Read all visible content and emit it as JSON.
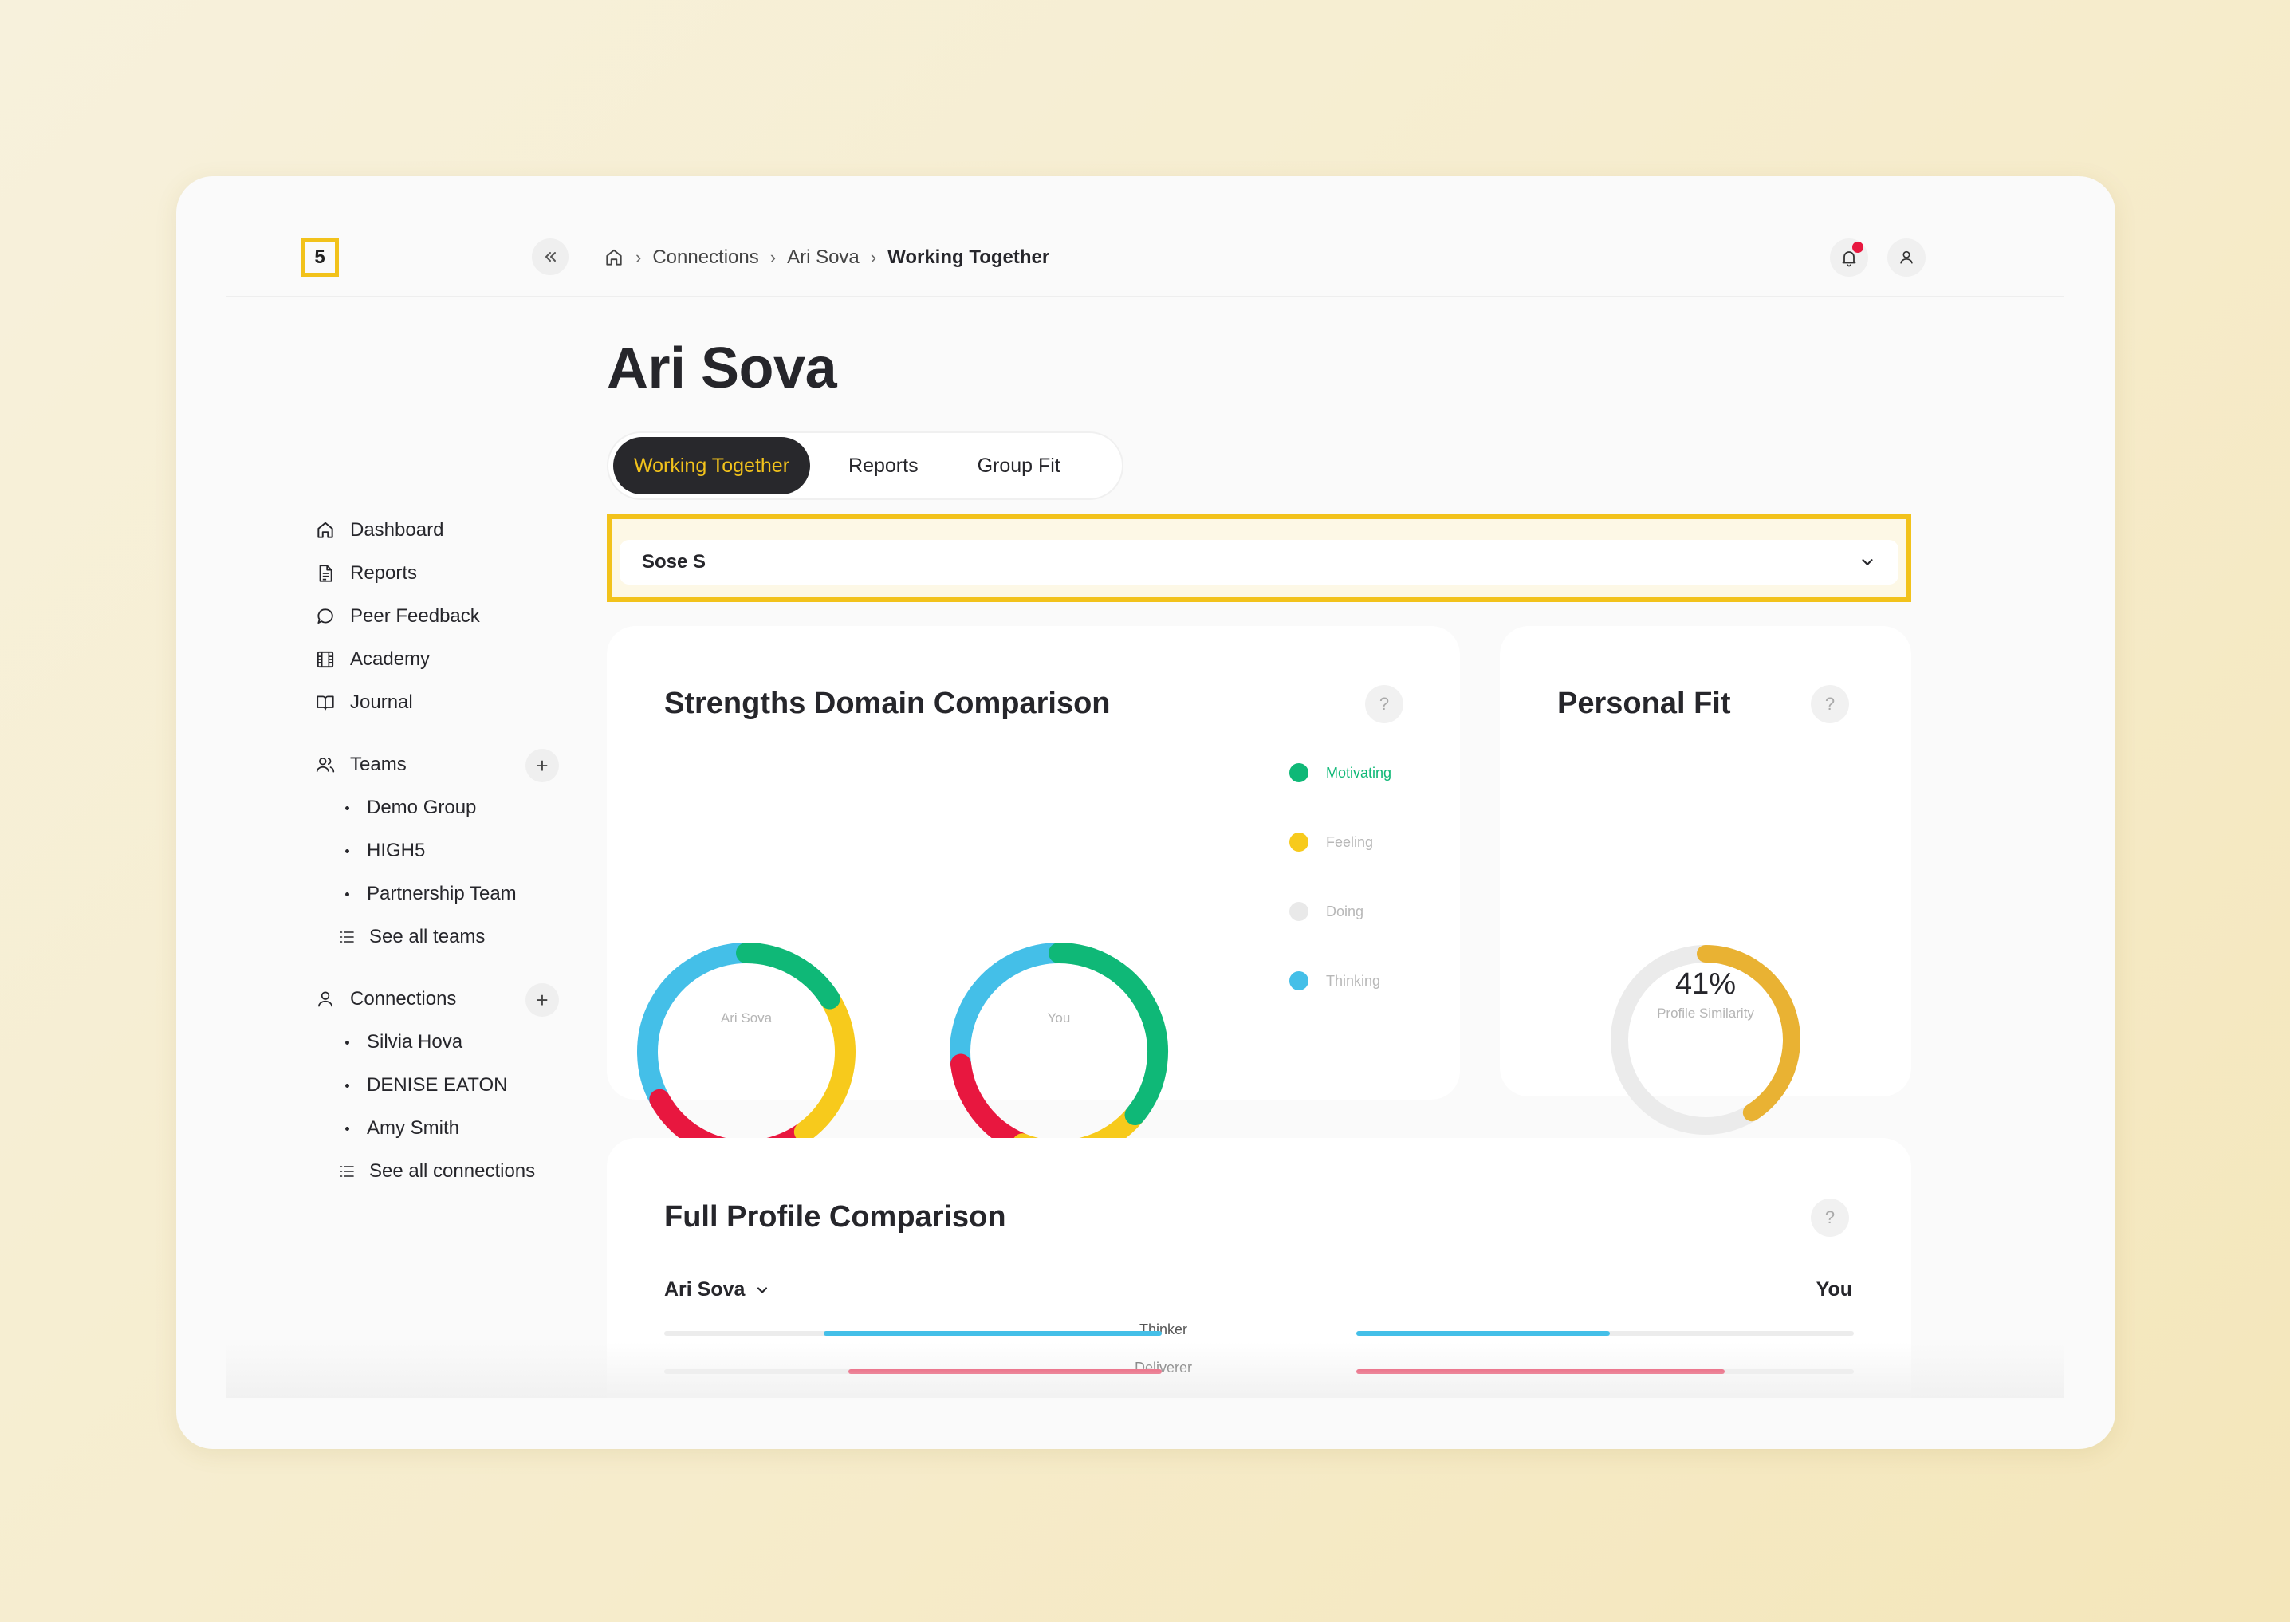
{
  "app": {
    "logo_text": "5"
  },
  "breadcrumb": {
    "items": [
      "Connections",
      "Ari Sova"
    ],
    "current": "Working Together"
  },
  "sidebar": {
    "nav": [
      "Dashboard",
      "Reports",
      "Peer Feedback",
      "Academy",
      "Journal"
    ],
    "teams": {
      "label": "Teams",
      "items": [
        "Demo Group",
        "HIGH5",
        "Partnership Team"
      ],
      "see_all": "See all teams"
    },
    "connections": {
      "label": "Connections",
      "items": [
        "Silvia Hova",
        "DENISE EATON",
        "Amy Smith"
      ],
      "see_all": "See all connections"
    }
  },
  "page": {
    "title": "Ari Sova"
  },
  "tabs": [
    {
      "label": "Working Together",
      "active": true
    },
    {
      "label": "Reports",
      "active": false
    },
    {
      "label": "Group Fit",
      "active": false
    }
  ],
  "select": {
    "value": "Sose S"
  },
  "strengths": {
    "title": "Strengths Domain Comparison",
    "help": "?",
    "legend": [
      {
        "label": "Motivating",
        "color": "#0fb877"
      },
      {
        "label": "Feeling",
        "color": "#f7ca1c"
      },
      {
        "label": "Doing",
        "color": "#e9e9e9"
      },
      {
        "label": "Thinking",
        "color": "#44bfe8"
      }
    ],
    "donuts": [
      {
        "caption": "Ari Sova",
        "segments": [
          {
            "domain": "Motivating",
            "color": "#0fb877",
            "fraction": 0.16
          },
          {
            "domain": "Feeling",
            "color": "#f7ca1c",
            "fraction": 0.24
          },
          {
            "domain": "Doing",
            "color": "#e8173f",
            "fraction": 0.27
          },
          {
            "domain": "Thinking",
            "color": "#44bfe8",
            "fraction": 0.33
          }
        ]
      },
      {
        "caption": "You",
        "segments": [
          {
            "domain": "Motivating",
            "color": "#0fb877",
            "fraction": 0.36
          },
          {
            "domain": "Feeling",
            "color": "#f7ca1c",
            "fraction": 0.2
          },
          {
            "domain": "Doing",
            "color": "#e8173f",
            "fraction": 0.17
          },
          {
            "domain": "Thinking",
            "color": "#44bfe8",
            "fraction": 0.27
          }
        ]
      }
    ]
  },
  "personal_fit": {
    "title": "Personal Fit",
    "help": "?",
    "percent_text": "41%",
    "percent_value": 41,
    "label": "Profile Similarity",
    "color": "#e9b233"
  },
  "full_profile": {
    "title": "Full Profile Comparison",
    "help": "?",
    "left_person": "Ari Sova",
    "right_person": "You",
    "rows": [
      {
        "label": "Thinker",
        "left": 0.68,
        "right": 0.51,
        "color": "#44bfe8"
      },
      {
        "label": "Deliverer",
        "left": 0.63,
        "right": 0.74,
        "color": "#e8173f"
      }
    ]
  }
}
